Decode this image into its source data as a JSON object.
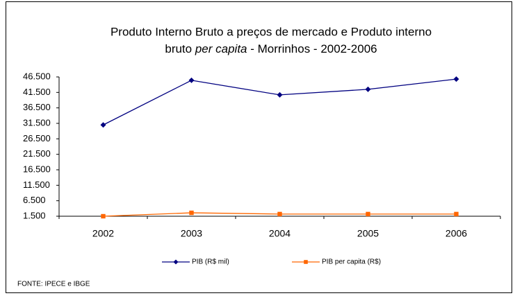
{
  "chart_data": {
    "type": "line",
    "title": [
      "Produto Interno Bruto a preços de mercado  e   Produto interno",
      "bruto",
      "per capita",
      "- Morrinhos - 2002-2006"
    ],
    "categories": [
      "2002",
      "2003",
      "2004",
      "2005",
      "2006"
    ],
    "series": [
      {
        "name": "PIB (R$ mil)",
        "color": "#000080",
        "marker": "diamond",
        "values": [
          31000,
          45400,
          40700,
          42500,
          45800
        ]
      },
      {
        "name": "PIB per capita (R$)",
        "color": "#FF6600",
        "marker": "square",
        "values": [
          1500,
          2600,
          2200,
          2200,
          2200
        ]
      }
    ],
    "ylim": [
      1500,
      46500
    ],
    "yticks": [
      {
        "value": 1500,
        "label": "1.500"
      },
      {
        "value": 6500,
        "label": "6.500"
      },
      {
        "value": 11500,
        "label": "11.500"
      },
      {
        "value": 16500,
        "label": "16.500"
      },
      {
        "value": 21500,
        "label": "21.500"
      },
      {
        "value": 26500,
        "label": "26.500"
      },
      {
        "value": 31500,
        "label": "31.500"
      },
      {
        "value": 36500,
        "label": "36.500"
      },
      {
        "value": 41500,
        "label": "41.500"
      },
      {
        "value": 46500,
        "label": "46.500"
      }
    ],
    "legend": "bottom",
    "source": "FONTE: IPECE e IBGE"
  }
}
